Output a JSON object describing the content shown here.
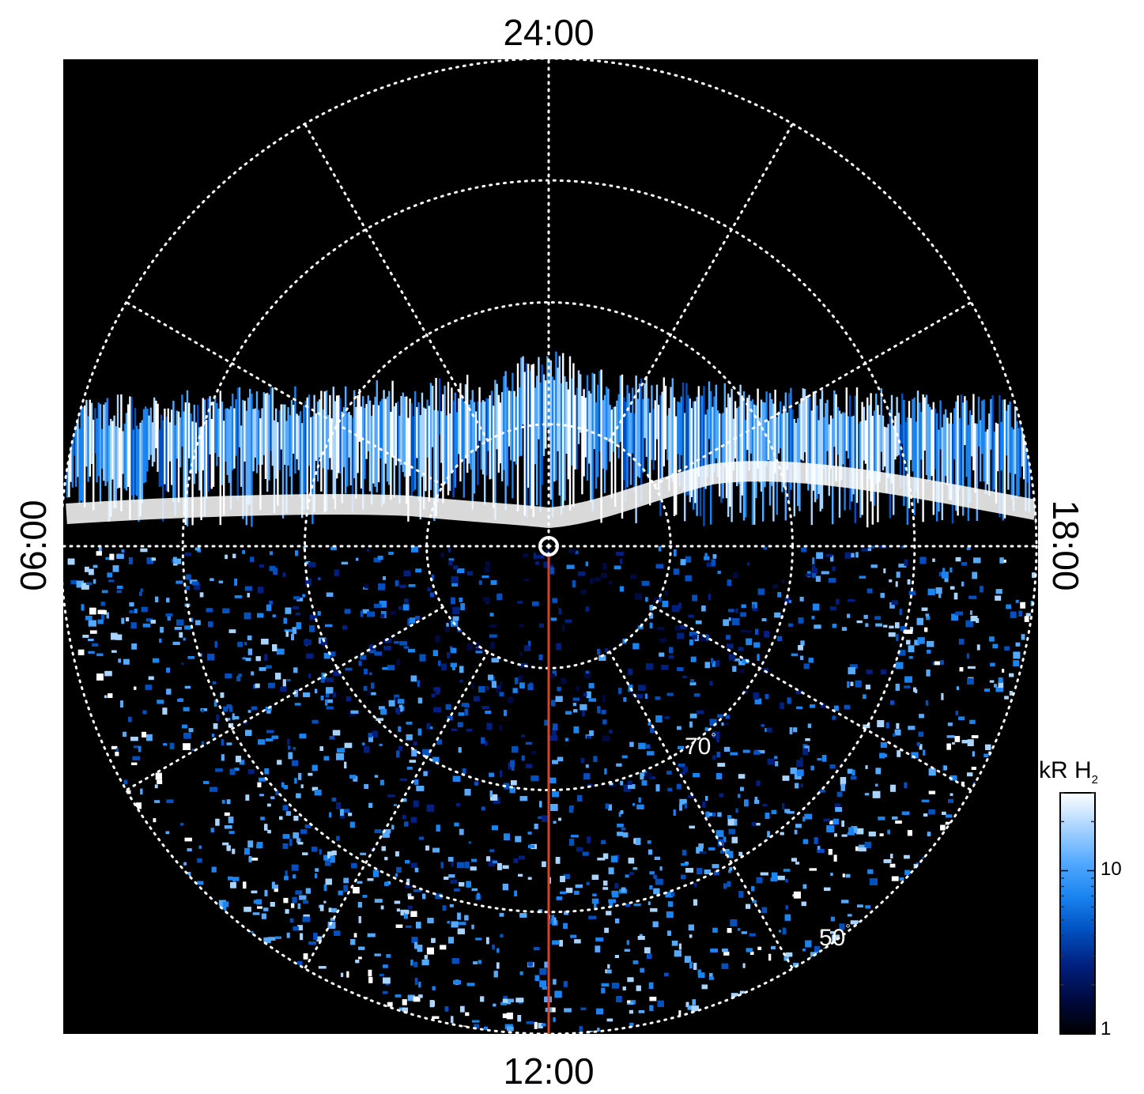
{
  "chart_data": {
    "type": "heatmap",
    "projection": "polar",
    "title": "",
    "local_time_labels": {
      "top": "24:00",
      "bottom": "12:00",
      "left": "06:00",
      "right": "18:00"
    },
    "latitude_labels": [
      {
        "value": 70,
        "text": "70",
        "unit": "°"
      },
      {
        "value": 50,
        "text": "50",
        "unit": "°"
      }
    ],
    "latitude_grid_deg": [
      80,
      70,
      60,
      50
    ],
    "local_time_grid_step_h": 2,
    "colorbar": {
      "title_main": "kR H",
      "title_sub": "2",
      "scale": "log",
      "range": [
        1,
        30
      ],
      "ticks": [
        {
          "value": 10,
          "label": "10"
        },
        {
          "value": 1,
          "label": "1"
        }
      ],
      "colors": [
        "#000000",
        "#000a40",
        "#00207f",
        "#0050c0",
        "#1a84f0",
        "#55aaff",
        "#a9d4ff",
        "#ffffff"
      ]
    },
    "highlight_meridian": {
      "local_time": "12:00",
      "color": "#e0401a"
    },
    "background_color": "#000000",
    "grid_color": "#ffffff"
  }
}
